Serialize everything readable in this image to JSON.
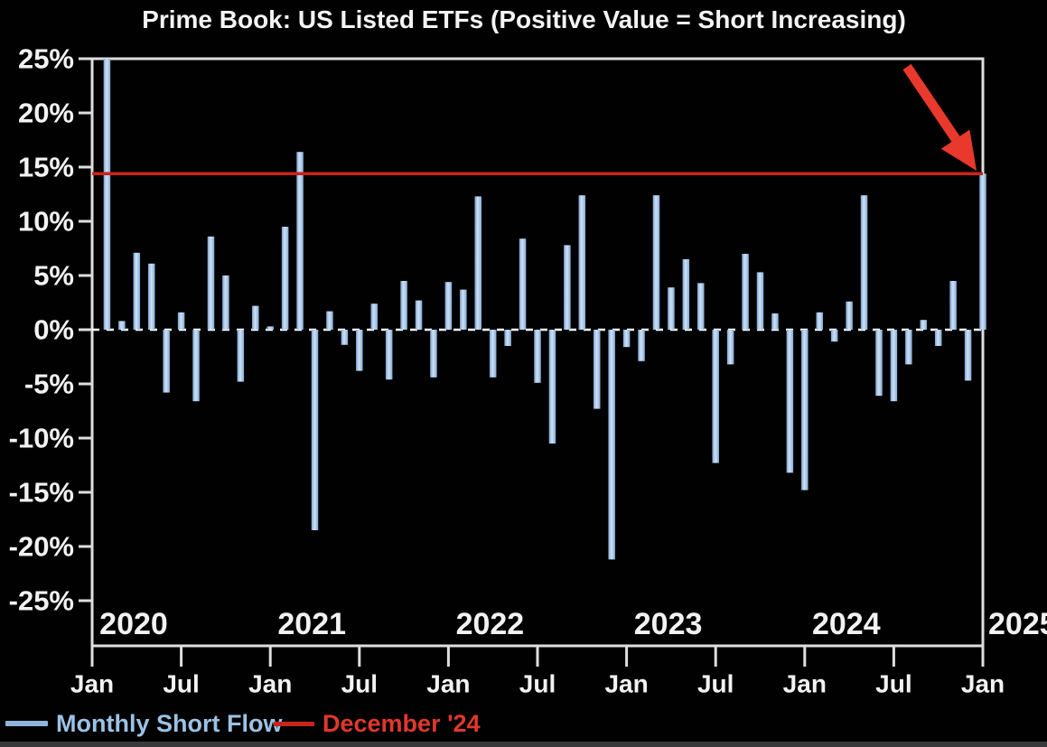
{
  "title": "Prime Book: US Listed ETFs (Positive Value = Short Increasing)",
  "legend": {
    "series_label": "Monthly Short Flow",
    "reference_label": "December '24"
  },
  "colors": {
    "background": "#010101",
    "bar_fill": "#8fb4de",
    "bar_highlight": "#cfe2f4",
    "axis": "#dedede",
    "tick_text": "#f2f2f2",
    "reference_line": "#c9241b",
    "arrow": "#e8392c",
    "legend_blue_text": "#9cc2e5",
    "legend_red_text": "#e0382c",
    "zero_line": "#ffffff"
  },
  "chart_data": {
    "type": "bar",
    "title": "Prime Book: US Listed ETFs (Positive Value = Short Increasing)",
    "unit": "%",
    "ylim": [
      -25,
      25
    ],
    "y_ticks": [
      {
        "label": "25%",
        "value": 25
      },
      {
        "label": "20%",
        "value": 20
      },
      {
        "label": "15%",
        "value": 15
      },
      {
        "label": "10%",
        "value": 10
      },
      {
        "label": "5%",
        "value": 5
      },
      {
        "label": "0%",
        "value": 0
      },
      {
        "label": "-5%",
        "value": -5
      },
      {
        "label": "-10%",
        "value": -10
      },
      {
        "label": "-15%",
        "value": -15
      },
      {
        "label": "-20%",
        "value": -20
      },
      {
        "label": "-25%",
        "value": -25
      }
    ],
    "x_tick_labels": [
      "Jan",
      "Jul",
      "Jan",
      "Jul",
      "Jan",
      "Jul",
      "Jan",
      "Jul",
      "Jan",
      "Jul",
      "Jan"
    ],
    "year_labels": [
      "2020",
      "2021",
      "2022",
      "2023",
      "2024"
    ],
    "axis_end_year_label": "2025",
    "grid": "zero-line-dashed",
    "legend_position": "bottom-left",
    "series_name": "Monthly Short Flow",
    "reference_line": {
      "label": "December '24",
      "value": 14.4
    },
    "annotation": {
      "type": "arrow",
      "points_at": "Dec 2024 bar top at reference line"
    },
    "first_bar_clipped_at": 25,
    "months": [
      "Jan 2020",
      "Feb 2020",
      "Mar 2020",
      "Apr 2020",
      "May 2020",
      "Jun 2020",
      "Jul 2020",
      "Aug 2020",
      "Sep 2020",
      "Oct 2020",
      "Nov 2020",
      "Dec 2020",
      "Jan 2021",
      "Feb 2021",
      "Mar 2021",
      "Apr 2021",
      "May 2021",
      "Jun 2021",
      "Jul 2021",
      "Aug 2021",
      "Sep 2021",
      "Oct 2021",
      "Nov 2021",
      "Dec 2021",
      "Jan 2022",
      "Feb 2022",
      "Mar 2022",
      "Apr 2022",
      "May 2022",
      "Jun 2022",
      "Jul 2022",
      "Aug 2022",
      "Sep 2022",
      "Oct 2022",
      "Nov 2022",
      "Dec 2022",
      "Jan 2023",
      "Feb 2023",
      "Mar 2023",
      "Apr 2023",
      "May 2023",
      "Jun 2023",
      "Jul 2023",
      "Aug 2023",
      "Sep 2023",
      "Oct 2023",
      "Nov 2023",
      "Dec 2023",
      "Jan 2024",
      "Feb 2024",
      "Mar 2024",
      "Apr 2024",
      "May 2024",
      "Jun 2024",
      "Jul 2024",
      "Aug 2024",
      "Sep 2024",
      "Oct 2024",
      "Nov 2024",
      "Dec 2024"
    ],
    "values": [
      25.8,
      0.8,
      7.1,
      6.1,
      -5.8,
      1.6,
      -6.6,
      8.6,
      5.0,
      -4.8,
      2.2,
      0.3,
      9.5,
      16.4,
      -18.5,
      1.7,
      -1.4,
      -3.8,
      2.4,
      -4.6,
      4.5,
      2.7,
      -4.4,
      4.4,
      3.7,
      12.3,
      -4.4,
      -1.5,
      8.4,
      -4.9,
      -10.5,
      7.8,
      12.4,
      -7.3,
      -21.2,
      -1.6,
      -2.9,
      12.4,
      3.9,
      6.5,
      4.3,
      -12.3,
      -3.2,
      7.0,
      5.3,
      1.5,
      -13.2,
      -14.8,
      1.6,
      -1.1,
      2.6,
      12.4,
      -6.1,
      -6.6,
      -3.2,
      0.9,
      -1.5,
      4.5,
      -4.7,
      14.4
    ]
  }
}
